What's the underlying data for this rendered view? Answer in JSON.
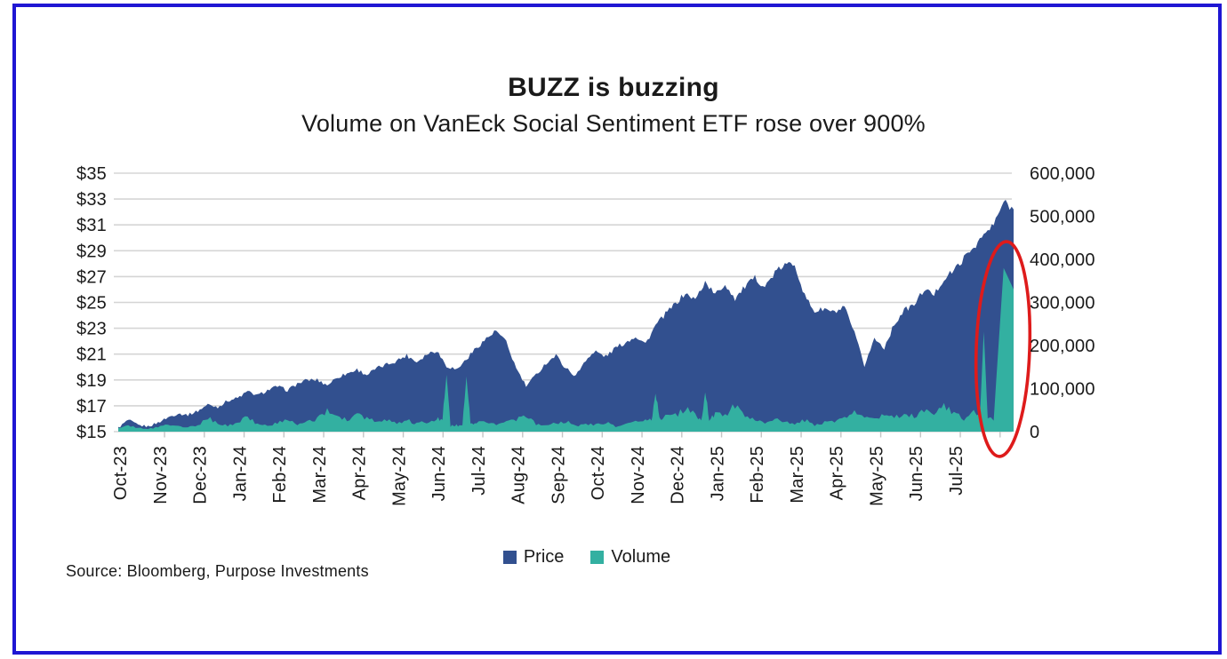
{
  "frame": {
    "border_color": "#1F16D3"
  },
  "title": "BUZZ is buzzing",
  "subtitle": "Volume on VanEck Social Sentiment ETF rose over 900%",
  "source": "Source: Bloomberg, Purpose Investments",
  "legend": {
    "items": [
      {
        "label": "Price",
        "color": "#32508F"
      },
      {
        "label": "Volume",
        "color": "#33B0A1"
      }
    ]
  },
  "chart_data": {
    "type": "area",
    "title": "BUZZ is buzzing",
    "subtitle": "Volume on VanEck Social Sentiment ETF rose over 900%",
    "grid": true,
    "grid_color": "#D5D5D5",
    "x_labels": [
      "Oct-23",
      "Nov-23",
      "Dec-23",
      "Jan-24",
      "Feb-24",
      "Mar-24",
      "Apr-24",
      "May-24",
      "Jun-24",
      "Jul-24",
      "Aug-24",
      "Sep-24",
      "Oct-24",
      "Nov-24",
      "Dec-24",
      "Jan-25",
      "Feb-25",
      "Mar-25",
      "Apr-25",
      "May-25",
      "Jun-25",
      "Jul-25"
    ],
    "y_left": {
      "labels": [
        "$35",
        "$33",
        "$31",
        "$29",
        "$27",
        "$25",
        "$23",
        "$21",
        "$19",
        "$17",
        "$15"
      ],
      "min": 15,
      "max": 35
    },
    "y_right": {
      "labels": [
        "600,000",
        "500,000",
        "400,000",
        "300,000",
        "200,000",
        "100,000",
        "0"
      ],
      "min": 0,
      "max": 600000
    },
    "interval": "weekly",
    "series": [
      {
        "name": "Price",
        "axis": "left",
        "color": "#32508F",
        "values": [
          15.3,
          15.9,
          15.5,
          15.4,
          15.7,
          16.1,
          16.4,
          16.3,
          16.6,
          17.1,
          16.9,
          17.4,
          17.6,
          18.1,
          17.8,
          18.2,
          18.5,
          18.2,
          18.7,
          19.0,
          19.0,
          18.6,
          19.2,
          19.5,
          19.8,
          19.4,
          19.9,
          20.2,
          20.5,
          20.9,
          20.4,
          21.0,
          21.3,
          20.1,
          19.8,
          20.6,
          21.5,
          22.2,
          22.8,
          21.9,
          19.9,
          18.5,
          19.4,
          20.3,
          20.9,
          19.9,
          19.3,
          20.6,
          21.2,
          20.8,
          21.5,
          21.9,
          22.4,
          21.8,
          23.2,
          24.1,
          24.9,
          25.7,
          25.2,
          26.6,
          25.6,
          26.4,
          25.3,
          26.2,
          26.9,
          26.2,
          27.3,
          27.9,
          28.0,
          25.5,
          24.3,
          24.5,
          24.2,
          24.6,
          22.6,
          20.1,
          22.2,
          21.5,
          23.3,
          24.4,
          24.8,
          26.0,
          25.6,
          26.8,
          27.5,
          28.4,
          29.3,
          30.2,
          31.0,
          32.8,
          32.2
        ]
      },
      {
        "name": "Volume",
        "axis": "right",
        "color": "#33B0A1",
        "values": [
          8000,
          14000,
          9000,
          7000,
          10000,
          18000,
          12000,
          9000,
          15000,
          32000,
          20000,
          14000,
          22000,
          35000,
          18000,
          15000,
          20000,
          28000,
          16000,
          22000,
          30000,
          48000,
          35000,
          28000,
          42000,
          30000,
          22000,
          28000,
          20000,
          26000,
          18000,
          24000,
          30000,
          132000,
          14000,
          128000,
          20000,
          26000,
          16000,
          22000,
          28000,
          36000,
          18000,
          15000,
          18000,
          24000,
          13000,
          17000,
          15000,
          21000,
          12000,
          17000,
          24000,
          30000,
          88000,
          34000,
          38000,
          55000,
          38000,
          91000,
          40000,
          36000,
          60000,
          33000,
          28000,
          20000,
          33000,
          24000,
          19000,
          27000,
          15000,
          21000,
          25000,
          30000,
          48000,
          35000,
          27000,
          38000,
          30000,
          42000,
          34000,
          48000,
          38000,
          58000,
          44000,
          28000,
          52000,
          232000,
          30000,
          380000,
          330000
        ]
      }
    ],
    "annotation": {
      "type": "ellipse-highlight",
      "color": "#DE1B1B",
      "target": "volume-spike-jul-25"
    },
    "legend_position": "bottom-center"
  }
}
